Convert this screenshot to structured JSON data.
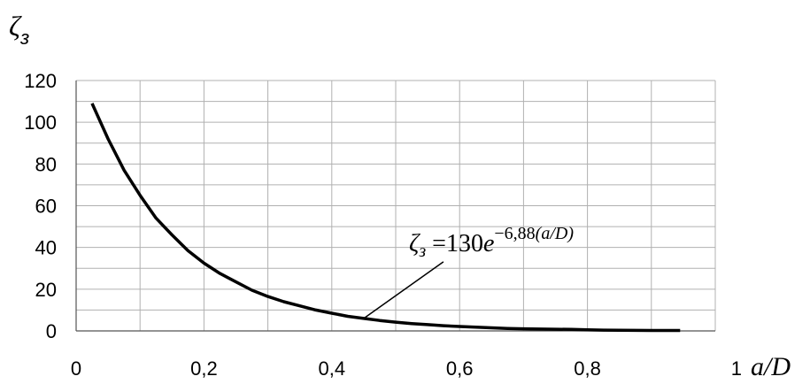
{
  "chart_data": {
    "type": "line",
    "title": "",
    "ylabel": {
      "symbol": "ζ",
      "subscript": "з"
    },
    "xlabel": "a/D",
    "xlim": [
      0,
      1
    ],
    "ylim": [
      0,
      120
    ],
    "x_ticks": [
      "0",
      "0,2",
      "0,4",
      "0,6",
      "0,8",
      "1"
    ],
    "y_ticks": [
      "0",
      "20",
      "40",
      "60",
      "80",
      "100",
      "120"
    ],
    "x_tick_values": [
      0,
      0.2,
      0.4,
      0.6,
      0.8,
      1.0
    ],
    "y_tick_values": [
      0,
      20,
      40,
      60,
      80,
      100,
      120
    ],
    "grid": {
      "x_minor_step": 0.1,
      "y_minor_step": 10
    },
    "series": [
      {
        "x": [
          0.025,
          0.05,
          0.075,
          0.1,
          0.125,
          0.15,
          0.175,
          0.2,
          0.225,
          0.25,
          0.275,
          0.3,
          0.325,
          0.35,
          0.375,
          0.4,
          0.425,
          0.45,
          0.475,
          0.5,
          0.525,
          0.55,
          0.575,
          0.6,
          0.625,
          0.65,
          0.675,
          0.7,
          0.725,
          0.75,
          0.775,
          0.8,
          0.825,
          0.85,
          0.875,
          0.9,
          0.925,
          0.945
        ],
        "y": [
          109,
          92,
          77,
          65,
          54,
          46,
          38.5,
          32.5,
          27.5,
          23.5,
          19.5,
          16.5,
          14,
          12,
          10,
          8.5,
          7,
          6,
          5,
          4.2,
          3.5,
          3,
          2.5,
          2.1,
          1.8,
          1.5,
          1.2,
          1,
          0.9,
          0.8,
          0.7,
          0.5,
          0.4,
          0.3,
          0.25,
          0.2,
          0.2,
          0.2
        ]
      }
    ],
    "annotation": {
      "text_parts": {
        "symbol": "ζ",
        "subscript": "з",
        "equals": " =130",
        "base": "e",
        "exponent": "−6,88",
        "exponent_arg": "(a/D)"
      },
      "points_to": {
        "x": 0.45,
        "y": 6
      }
    }
  }
}
